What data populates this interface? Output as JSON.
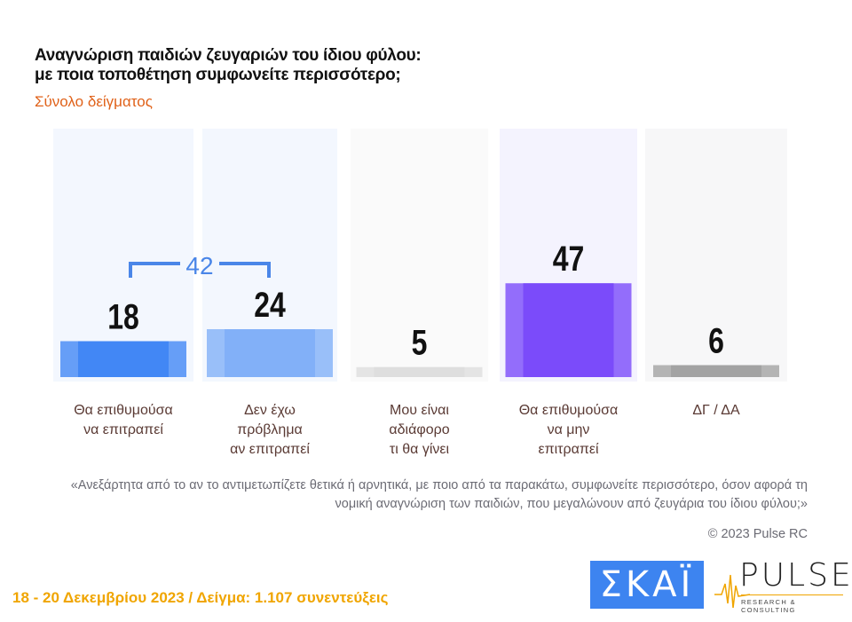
{
  "header": {
    "title_line1": "Αναγνώριση παιδιών ζευγαριών του  ίδιου φύλου:",
    "title_line2": "με ποια τοποθέτηση συμφωνείτε περισσότερο;",
    "subtitle": "Σύνολο δείγματος"
  },
  "chart_data": {
    "type": "bar",
    "categories": [
      "Θα επιθυμούσα\nνα επιτραπεί",
      "Δεν έχω\nπρόβλημα\nαν επιτραπεί",
      "Μου είναι\nαδιάφορο\nτι θα γίνει",
      "Θα επιθυμούσα\nνα μην\nεπιτραπεί",
      "ΔΓ / ΔΑ"
    ],
    "values": [
      18,
      24,
      5,
      47,
      6
    ],
    "colors": [
      "#4287f5",
      "#82b0f8",
      "#dedede",
      "#7b4bfa",
      "#a3a3a3"
    ],
    "bracket": {
      "label": "42",
      "spans": [
        0,
        1
      ],
      "color": "#4a86e8"
    },
    "grid": false
  },
  "footnote": {
    "question": "«Ανεξάρτητα από το αν το αντιμετωπίζετε θετικά ή αρνητικά, με ποιο από τα παρακάτω, συμφωνείτε περισσότερο, όσον αφορά τη νομική αναγνώριση των παιδιών, που μεγαλώνουν από ζευγάρια του ίδιου φύλου;»",
    "copyright": "© 2023 Pulse RC"
  },
  "footer": {
    "text": "18 - 20  Δεκεμβρίου  2023  /  Δείγμα:  1.107 συνεντεύξεις"
  },
  "logos": {
    "skai": "ΣΚΑΪ",
    "pulse": "PULSE",
    "pulse_tagline": "RESEARCH & CONSULTING"
  }
}
